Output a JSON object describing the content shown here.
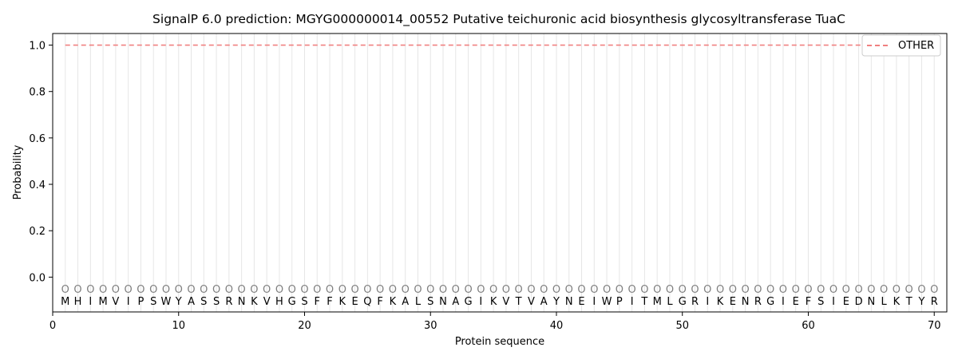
{
  "chart_data": {
    "type": "line",
    "title": "SignalP 6.0 prediction: MGYG000000014_00552 Putative teichuronic acid biosynthesis glycosyltransferase TuaC",
    "xlabel": "Protein sequence",
    "ylabel": "Probability",
    "xlim": [
      0,
      71
    ],
    "ylim": [
      -0.15,
      1.05
    ],
    "xticks": [
      0,
      10,
      20,
      30,
      40,
      50,
      60,
      70
    ],
    "yticks": [
      0.0,
      0.2,
      0.4,
      0.6,
      0.8,
      1.0
    ],
    "xtick_labels": [
      "0",
      "10",
      "20",
      "30",
      "40",
      "50",
      "60",
      "70"
    ],
    "ytick_labels": [
      "0.0",
      "0.2",
      "0.4",
      "0.6",
      "0.8",
      "1.0"
    ],
    "sequence": [
      "M",
      "H",
      "I",
      "M",
      "V",
      "I",
      "P",
      "S",
      "W",
      "Y",
      "A",
      "S",
      "S",
      "R",
      "N",
      "K",
      "V",
      "H",
      "G",
      "S",
      "F",
      "F",
      "K",
      "E",
      "Q",
      "F",
      "K",
      "A",
      "L",
      "S",
      "N",
      "A",
      "G",
      "I",
      "K",
      "V",
      "T",
      "V",
      "A",
      "Y",
      "N",
      "E",
      "I",
      "W",
      "P",
      "I",
      "T",
      "M",
      "L",
      "G",
      "R",
      "I",
      "K",
      "E",
      "N",
      "R",
      "G",
      "I",
      "E",
      "F",
      "S",
      "I",
      "E",
      "D",
      "N",
      "L",
      "K",
      "T",
      "Y",
      "R"
    ],
    "region_labels": [
      "O",
      "O",
      "O",
      "O",
      "O",
      "O",
      "O",
      "O",
      "O",
      "O",
      "O",
      "O",
      "O",
      "O",
      "O",
      "O",
      "O",
      "O",
      "O",
      "O",
      "O",
      "O",
      "O",
      "O",
      "O",
      "O",
      "O",
      "O",
      "O",
      "O",
      "O",
      "O",
      "O",
      "O",
      "O",
      "O",
      "O",
      "O",
      "O",
      "O",
      "O",
      "O",
      "O",
      "O",
      "O",
      "O",
      "O",
      "O",
      "O",
      "O",
      "O",
      "O",
      "O",
      "O",
      "O",
      "O",
      "O",
      "O",
      "O",
      "O",
      "O",
      "O",
      "O",
      "O",
      "O",
      "O",
      "O",
      "O",
      "O",
      "O"
    ],
    "series": [
      {
        "name": "OTHER",
        "color": "#f08080",
        "style": "dashed",
        "x_start": 1,
        "x_end": 70,
        "values": [
          1.0,
          1.0,
          1.0,
          1.0,
          1.0,
          1.0,
          1.0,
          1.0,
          1.0,
          1.0,
          1.0,
          1.0,
          1.0,
          1.0,
          1.0,
          1.0,
          1.0,
          1.0,
          1.0,
          1.0,
          1.0,
          1.0,
          1.0,
          1.0,
          1.0,
          1.0,
          1.0,
          1.0,
          1.0,
          1.0,
          1.0,
          1.0,
          1.0,
          1.0,
          1.0,
          1.0,
          1.0,
          1.0,
          1.0,
          1.0,
          1.0,
          1.0,
          1.0,
          1.0,
          1.0,
          1.0,
          1.0,
          1.0,
          1.0,
          1.0,
          1.0,
          1.0,
          1.0,
          1.0,
          1.0,
          1.0,
          1.0,
          1.0,
          1.0,
          1.0,
          1.0,
          1.0,
          1.0,
          1.0,
          1.0,
          1.0,
          1.0,
          1.0,
          1.0,
          1.0
        ]
      }
    ],
    "legend": {
      "placement": "top-right",
      "entries": [
        "OTHER"
      ]
    },
    "grid": "vertical per residue"
  }
}
